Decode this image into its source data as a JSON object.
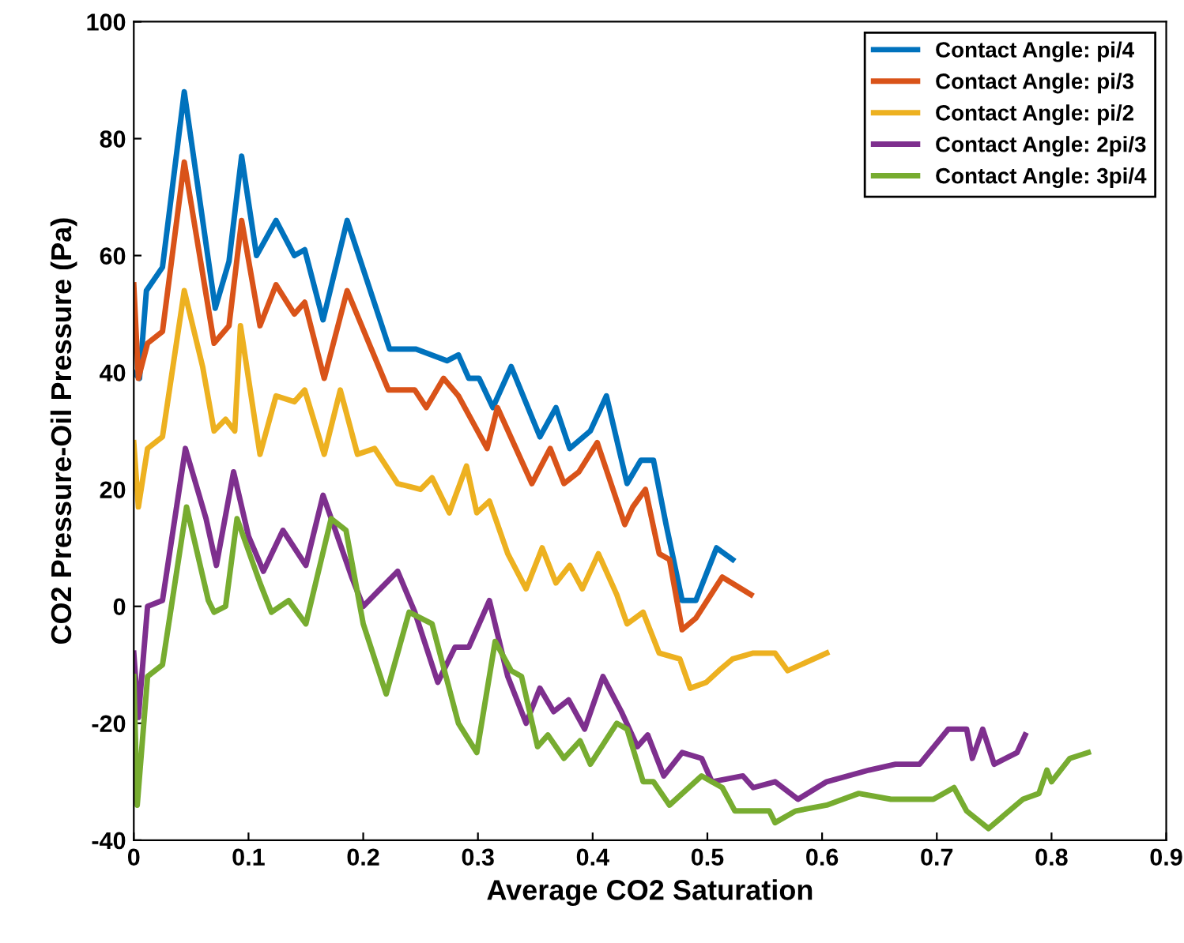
{
  "chart_data": {
    "type": "line",
    "xlabel": "Average CO2 Saturation",
    "ylabel": "CO2 Pressure-Oil Pressure (Pa)",
    "xlim": [
      0,
      0.9
    ],
    "ylim": [
      -40,
      100
    ],
    "xticks": [
      0,
      0.1,
      0.2,
      0.3,
      0.4,
      0.5,
      0.6,
      0.7,
      0.8,
      0.9
    ],
    "yticks": [
      -40,
      -20,
      0,
      20,
      40,
      60,
      80,
      100
    ],
    "grid": false,
    "legend": "top right",
    "marker": "none",
    "line_style": "solid",
    "series": [
      {
        "name": "Contact Angle: pi/4",
        "color": "#0072bd",
        "x": [
          0,
          0.005,
          0.011,
          0.025,
          0.044,
          0.071,
          0.083,
          0.094,
          0.107,
          0.124,
          0.14,
          0.149,
          0.165,
          0.186,
          0.223,
          0.246,
          0.273,
          0.283,
          0.292,
          0.301,
          0.313,
          0.329,
          0.354,
          0.368,
          0.38,
          0.398,
          0.412,
          0.43,
          0.442,
          0.453,
          0.464,
          0.478,
          0.49,
          0.508,
          0.522
        ],
        "values": [
          40,
          39,
          54,
          58,
          88,
          51,
          59,
          77,
          60,
          66,
          60,
          61,
          49,
          66,
          44,
          44,
          42,
          43,
          39,
          39,
          34,
          41,
          29,
          34,
          27,
          30,
          36,
          21,
          25,
          25,
          14,
          1,
          1,
          10,
          8
        ]
      },
      {
        "name": "Contact Angle: pi/3",
        "color": "#d95319",
        "x": [
          0,
          0.004,
          0.012,
          0.025,
          0.044,
          0.07,
          0.083,
          0.094,
          0.11,
          0.124,
          0.14,
          0.149,
          0.166,
          0.186,
          0.205,
          0.222,
          0.245,
          0.255,
          0.27,
          0.283,
          0.308,
          0.317,
          0.347,
          0.363,
          0.375,
          0.388,
          0.404,
          0.428,
          0.435,
          0.446,
          0.458,
          0.467,
          0.478,
          0.49,
          0.513,
          0.538
        ],
        "values": [
          55,
          39,
          45,
          47,
          76,
          45,
          48,
          66,
          48,
          55,
          50,
          52,
          39,
          54,
          45,
          37,
          37,
          34,
          39,
          36,
          27,
          34,
          21,
          27,
          21,
          23,
          28,
          14,
          17,
          20,
          9,
          8,
          -4,
          -2,
          5,
          2
        ]
      },
      {
        "name": "Contact Angle: pi/2",
        "color": "#edb120",
        "x": [
          0,
          0.004,
          0.012,
          0.025,
          0.044,
          0.06,
          0.07,
          0.08,
          0.088,
          0.093,
          0.11,
          0.124,
          0.14,
          0.149,
          0.166,
          0.18,
          0.195,
          0.21,
          0.23,
          0.25,
          0.26,
          0.275,
          0.29,
          0.299,
          0.31,
          0.326,
          0.342,
          0.356,
          0.368,
          0.38,
          0.391,
          0.405,
          0.421,
          0.43,
          0.444,
          0.458,
          0.476,
          0.485,
          0.499,
          0.51,
          0.522,
          0.54,
          0.559,
          0.57,
          0.604
        ],
        "values": [
          28,
          17,
          27,
          29,
          54,
          41,
          30,
          32,
          30,
          48,
          26,
          36,
          35,
          37,
          26,
          37,
          26,
          27,
          21,
          20,
          22,
          16,
          24,
          16,
          18,
          9,
          3,
          10,
          4,
          7,
          3,
          9,
          2,
          -3,
          -1,
          -8,
          -9,
          -14,
          -13,
          -11,
          -9,
          -8,
          -8,
          -11,
          -8
        ]
      },
      {
        "name": "Contact Angle: 2pi/3",
        "color": "#7e2f8e",
        "x": [
          0,
          0.004,
          0.012,
          0.025,
          0.045,
          0.063,
          0.072,
          0.087,
          0.1,
          0.113,
          0.13,
          0.15,
          0.165,
          0.19,
          0.2,
          0.215,
          0.23,
          0.245,
          0.265,
          0.28,
          0.292,
          0.31,
          0.326,
          0.342,
          0.354,
          0.366,
          0.379,
          0.393,
          0.409,
          0.425,
          0.439,
          0.448,
          0.462,
          0.478,
          0.495,
          0.504,
          0.531,
          0.54,
          0.559,
          0.579,
          0.604,
          0.641,
          0.664,
          0.685,
          0.71,
          0.726,
          0.731,
          0.74,
          0.75,
          0.77,
          0.777
        ],
        "values": [
          -8,
          -19,
          0,
          1,
          27,
          15,
          7,
          23,
          12,
          6,
          13,
          7,
          19,
          5,
          0,
          3,
          6,
          -1,
          -13,
          -7,
          -7,
          1,
          -12,
          -20,
          -14,
          -18,
          -16,
          -21,
          -12,
          -18,
          -24,
          -22,
          -29,
          -25,
          -26,
          -30,
          -29,
          -31,
          -30,
          -33,
          -30,
          -28,
          -27,
          -27,
          -21,
          -21,
          -26,
          -21,
          -27,
          -25,
          -22
        ]
      },
      {
        "name": "Contact Angle: 3pi/4",
        "color": "#77ac30",
        "x": [
          0,
          0.003,
          0.012,
          0.025,
          0.046,
          0.065,
          0.07,
          0.08,
          0.09,
          0.11,
          0.12,
          0.135,
          0.15,
          0.172,
          0.185,
          0.2,
          0.22,
          0.24,
          0.26,
          0.283,
          0.299,
          0.315,
          0.329,
          0.338,
          0.352,
          0.361,
          0.375,
          0.389,
          0.398,
          0.421,
          0.43,
          0.444,
          0.453,
          0.467,
          0.495,
          0.513,
          0.524,
          0.547,
          0.554,
          0.559,
          0.577,
          0.604,
          0.632,
          0.66,
          0.697,
          0.715,
          0.726,
          0.745,
          0.775,
          0.789,
          0.796,
          0.8,
          0.816,
          0.832
        ],
        "values": [
          -12,
          -34,
          -12,
          -10,
          17,
          1,
          -1,
          0,
          15,
          4,
          -1,
          1,
          -3,
          15,
          13,
          -3,
          -15,
          -1,
          -3,
          -20,
          -25,
          -6,
          -11,
          -12,
          -24,
          -22,
          -26,
          -23,
          -27,
          -20,
          -21,
          -30,
          -30,
          -34,
          -29,
          -31,
          -35,
          -35,
          -35,
          -37,
          -35,
          -34,
          -32,
          -33,
          -33,
          -31,
          -35,
          -38,
          -33,
          -32,
          -28,
          -30,
          -26,
          -25
        ]
      }
    ]
  }
}
